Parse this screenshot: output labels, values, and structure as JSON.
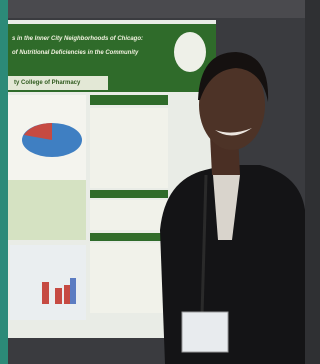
{
  "poster": {
    "title_line1": "s in the Inner City Neighborhoods of Chicago:",
    "title_line2": "of Nutritional Deficiencies in the Community",
    "institution": "ty College of Pharmacy"
  }
}
